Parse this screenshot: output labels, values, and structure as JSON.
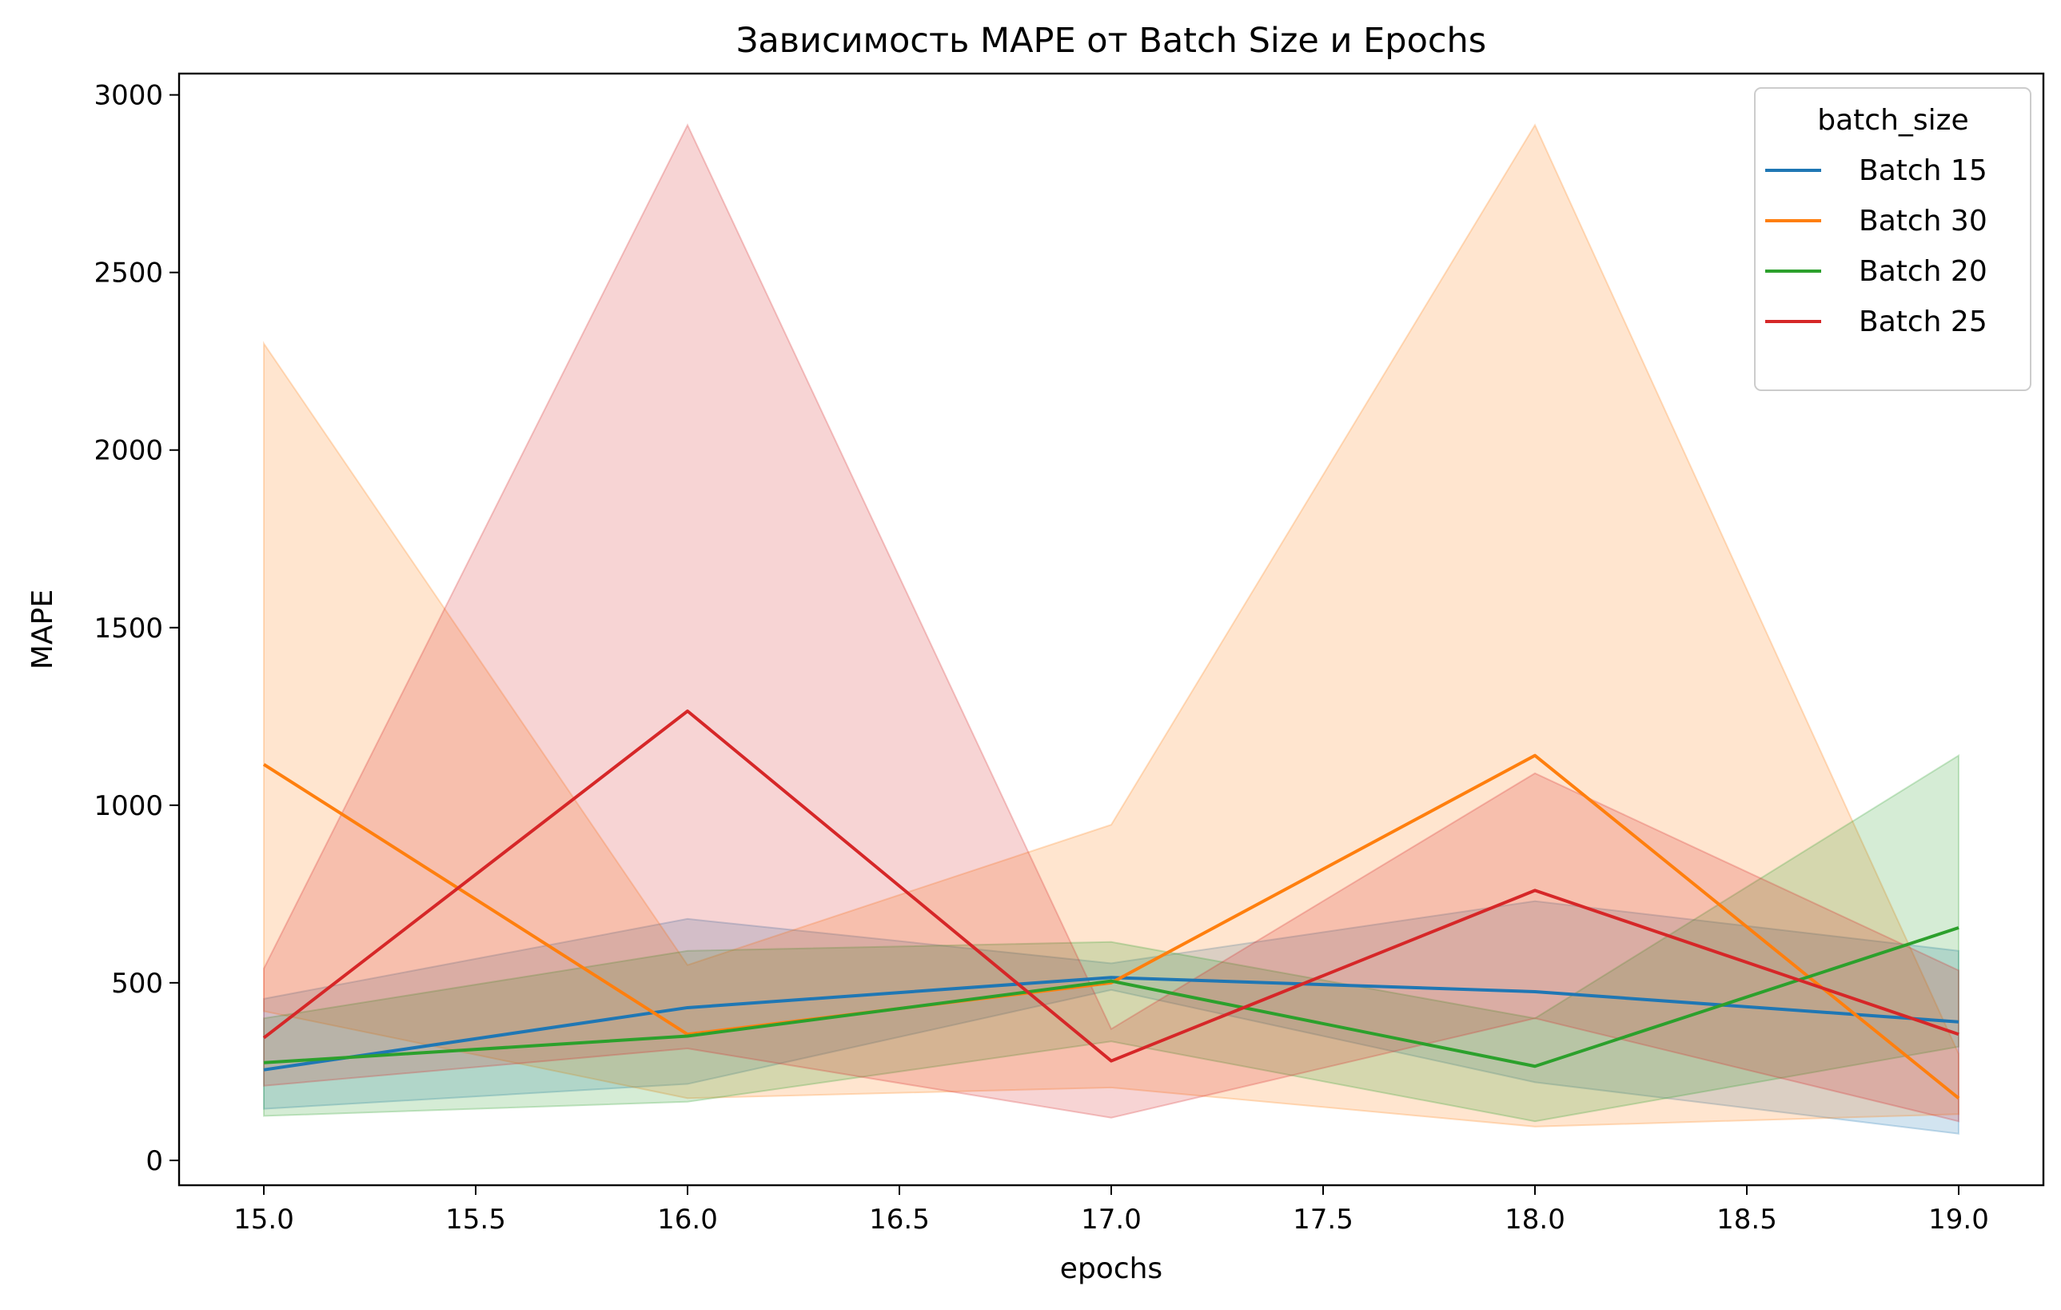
{
  "chart_data": {
    "type": "line",
    "title": "Зависимость MAPE от Batch Size и Epochs",
    "xlabel": "epochs",
    "ylabel": "MAPE",
    "xlim": [
      14.8,
      19.2
    ],
    "ylim": [
      -70,
      3060
    ],
    "x_ticks": [
      15.0,
      15.5,
      16.0,
      16.5,
      17.0,
      17.5,
      18.0,
      18.5,
      19.0
    ],
    "x_tick_labels": [
      "15.0",
      "15.5",
      "16.0",
      "16.5",
      "17.0",
      "17.5",
      "18.0",
      "18.5",
      "19.0"
    ],
    "y_ticks": [
      0,
      500,
      1000,
      1500,
      2000,
      2500,
      3000
    ],
    "y_tick_labels": [
      "0",
      "500",
      "1000",
      "1500",
      "2000",
      "2500",
      "3000"
    ],
    "grid": false,
    "legend": {
      "title": "batch_size",
      "position": "top-right"
    },
    "x": [
      15,
      16,
      17,
      18,
      19
    ],
    "series": [
      {
        "name": "Batch 15",
        "color": "#1f77b4",
        "values": [
          255,
          430,
          515,
          475,
          390
        ],
        "ci_lower": [
          145,
          215,
          480,
          220,
          75
        ],
        "ci_upper": [
          455,
          680,
          555,
          730,
          590
        ]
      },
      {
        "name": "Batch 30",
        "color": "#ff7f0e",
        "values": [
          1115,
          355,
          500,
          1140,
          175
        ],
        "ci_lower": [
          420,
          175,
          205,
          95,
          130
        ],
        "ci_upper": [
          2300,
          550,
          945,
          2915,
          300
        ]
      },
      {
        "name": "Batch 20",
        "color": "#2ca02c",
        "values": [
          275,
          350,
          505,
          265,
          655
        ],
        "ci_lower": [
          125,
          165,
          335,
          110,
          320
        ],
        "ci_upper": [
          400,
          590,
          615,
          400,
          1140
        ]
      },
      {
        "name": "Batch 25",
        "color": "#d62728",
        "values": [
          345,
          1265,
          280,
          760,
          355
        ],
        "ci_lower": [
          210,
          315,
          120,
          400,
          110
        ],
        "ci_upper": [
          540,
          2915,
          370,
          1090,
          535
        ]
      }
    ]
  }
}
